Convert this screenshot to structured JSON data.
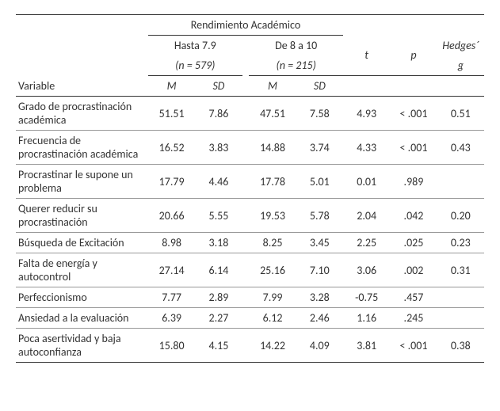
{
  "header": {
    "super": "Rendimiento Académico",
    "group1_label": "Hasta 7.9",
    "group1_n": "(n = 579)",
    "group2_label": "De 8 a 10",
    "group2_n": "(n = 215)",
    "var_label": "Variable",
    "M": "M",
    "SD": "SD",
    "t": "t",
    "p": "p",
    "hedges1": "Hedges´",
    "hedges2": "g"
  },
  "rows": [
    {
      "var": "Grado de procrastinación académica",
      "m1": "51.51",
      "sd1": "7.86",
      "m2": "47.51",
      "sd2": "7.58",
      "t": "4.93",
      "p": "< .001",
      "g": "0.51"
    },
    {
      "var": "Frecuencia de procrastinación académica",
      "m1": "16.52",
      "sd1": "3.83",
      "m2": "14.88",
      "sd2": "3.74",
      "t": "4.33",
      "p": "< .001",
      "g": "0.43"
    },
    {
      "var": "Procrastinar le supone un problema",
      "m1": "17.79",
      "sd1": "4.46",
      "m2": "17.78",
      "sd2": "5.01",
      "t": "0.01",
      "p": ".989",
      "g": ""
    },
    {
      "var": "Querer reducir su procrastinación",
      "m1": "20.66",
      "sd1": "5.55",
      "m2": "19.53",
      "sd2": "5.78",
      "t": "2.04",
      "p": ".042",
      "g": "0.20"
    },
    {
      "var": "Búsqueda de Excitación",
      "m1": "8.98",
      "sd1": "3.18",
      "m2": "8.25",
      "sd2": "3.45",
      "t": "2.25",
      "p": ".025",
      "g": "0.23"
    },
    {
      "var": "Falta de energía y autocontrol",
      "m1": "27.14",
      "sd1": "6.14",
      "m2": "25.16",
      "sd2": "7.10",
      "t": "3.06",
      "p": ".002",
      "g": "0.31"
    },
    {
      "var": "Perfeccionismo",
      "m1": "7.77",
      "sd1": "2.89",
      "m2": "7.99",
      "sd2": "3.28",
      "t": "-0.75",
      "p": ".457",
      "g": ""
    },
    {
      "var": "Ansiedad a la evaluación",
      "m1": "6.39",
      "sd1": "2.27",
      "m2": "6.12",
      "sd2": "2.46",
      "t": "1.16",
      "p": ".245",
      "g": ""
    },
    {
      "var": "Poca asertividad y baja autoconfianza",
      "m1": "15.80",
      "sd1": "4.15",
      "m2": "14.22",
      "sd2": "4.09",
      "t": "3.81",
      "p": "< .001",
      "g": "0.38"
    }
  ],
  "style": {
    "font_family": "Calibri",
    "font_size_pt": 11,
    "text_color": "#333333",
    "rule_color": "#333333",
    "row_rule_color": "#999999",
    "background": "#ffffff"
  }
}
